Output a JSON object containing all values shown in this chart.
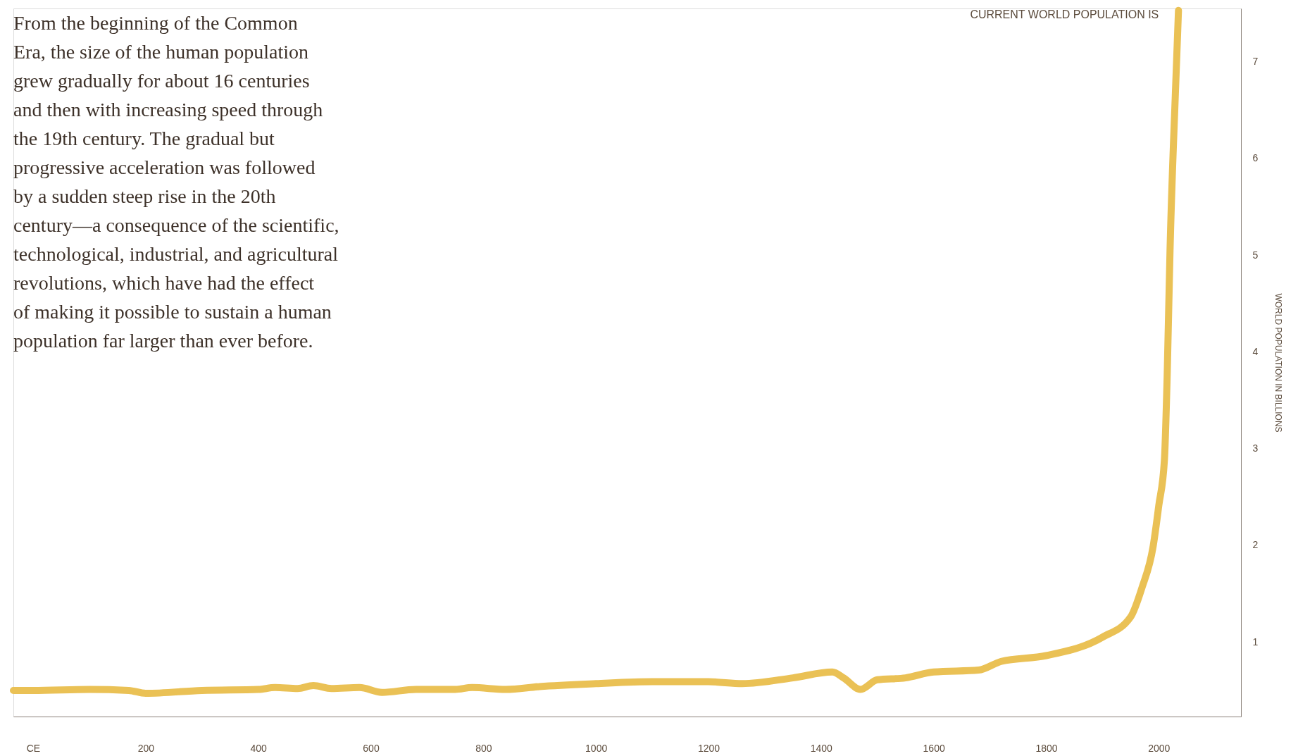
{
  "chart_data": {
    "type": "line",
    "ylabel": "WORLD POPULATION IN BILLIONS",
    "x": [
      -35,
      0,
      100,
      170,
      200,
      300,
      400,
      430,
      470,
      498,
      530,
      580,
      620,
      680,
      750,
      780,
      840,
      900,
      1000,
      1100,
      1200,
      1260,
      1350,
      1420,
      1440,
      1470,
      1500,
      1550,
      1600,
      1680,
      1720,
      1800,
      1900,
      1950,
      1970,
      1990,
      2000,
      2010,
      2015,
      2020,
      2030,
      2035
    ],
    "series": [
      {
        "color": "#eac155",
        "values": [
          0.5,
          0.5,
          0.51,
          0.5,
          0.47,
          0.5,
          0.51,
          0.53,
          0.52,
          0.55,
          0.52,
          0.53,
          0.48,
          0.51,
          0.51,
          0.53,
          0.51,
          0.54,
          0.57,
          0.59,
          0.59,
          0.57,
          0.63,
          0.69,
          0.63,
          0.51,
          0.61,
          0.63,
          0.69,
          0.71,
          0.8,
          0.86,
          1.05,
          1.26,
          1.56,
          1.99,
          2.41,
          2.88,
          3.77,
          5.05,
          6.75,
          7.53
        ]
      }
    ],
    "xlim": [
      -35,
      2146
    ],
    "xticks": [
      {
        "value": 0,
        "label": "CE"
      },
      200,
      400,
      600,
      800,
      1000,
      1200,
      1400,
      1600,
      1800,
      2000
    ],
    "ylim": [
      0.23,
      7.55
    ],
    "yticks": [
      1,
      2,
      3,
      4,
      5,
      6,
      7
    ],
    "grid": false,
    "line_style": "solid",
    "annotations": [
      "From the beginning of the Common\nEra, the size of the human population\ngrew gradually for about 16 centuries\nand then with increasing speed through\nthe 19th century. The gradual but\nprogressive acceleration was followed\nby a sudden steep rise in the 20th\ncentury—a consequence of the scientific,\ntechnological, industrial, and agricultural\nrevolutions, which have had the effect\nof making it possible to sustain a human\npopulation far larger than ever before.",
      {
        "text": "CURRENT WORLD POPULATION IS",
        "x": 2035,
        "y": 7.53
      }
    ]
  }
}
